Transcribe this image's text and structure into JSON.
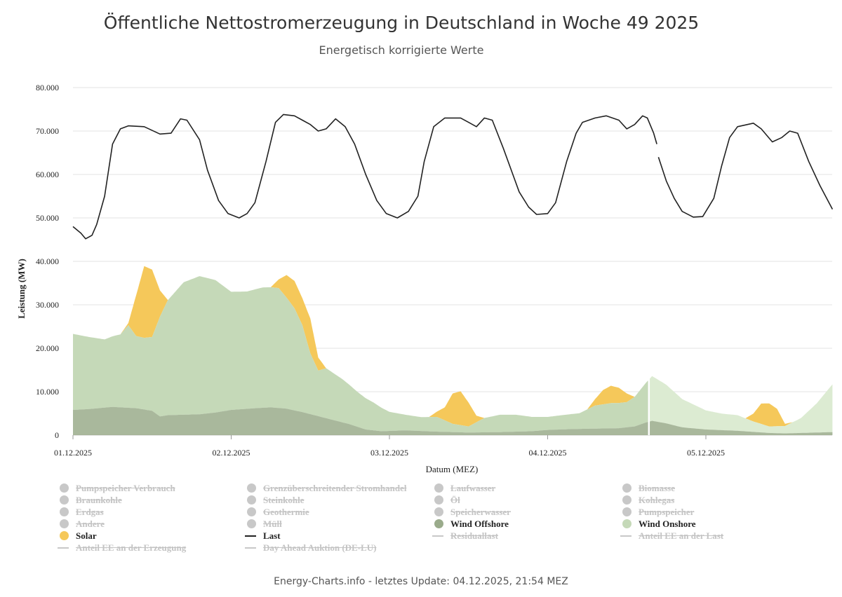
{
  "header": {
    "title": "Öffentliche Nettostromerzeugung in Deutschland in Woche 49 2025",
    "subtitle": "Energetisch korrigierte Werte"
  },
  "footer": {
    "text": "Energy-Charts.info - letztes Update: 04.12.2025, 21:54 MEZ"
  },
  "colors": {
    "solar": "#f5c85a",
    "wind_onshore": "#c5d9b8",
    "wind_onshore_forecast": "#dcebd2",
    "wind_offshore": "#9aab8b",
    "last": "#222222",
    "disabled": "#c8c8c8",
    "grid": "#e3e3e3"
  },
  "legend": [
    {
      "label": "Pumpspeicher Verbrauch",
      "symbol": "dot",
      "active": false
    },
    {
      "label": "Grenzüberschreitender Stromhandel",
      "symbol": "dot",
      "active": false
    },
    {
      "label": "Laufwasser",
      "symbol": "dot",
      "active": false
    },
    {
      "label": "Biomasse",
      "symbol": "dot",
      "active": false
    },
    {
      "label": "Braunkohle",
      "symbol": "dot",
      "active": false
    },
    {
      "label": "Steinkohle",
      "symbol": "dot",
      "active": false
    },
    {
      "label": "Öl",
      "symbol": "dot",
      "active": false
    },
    {
      "label": "Kohlegas",
      "symbol": "dot",
      "active": false
    },
    {
      "label": "Erdgas",
      "symbol": "dot",
      "active": false
    },
    {
      "label": "Geothermie",
      "symbol": "dot",
      "active": false
    },
    {
      "label": "Speicherwasser",
      "symbol": "dot",
      "active": false
    },
    {
      "label": "Pumpspeicher",
      "symbol": "dot",
      "active": false
    },
    {
      "label": "Andere",
      "symbol": "dot",
      "active": false
    },
    {
      "label": "Müll",
      "symbol": "dot",
      "active": false
    },
    {
      "label": "Wind Offshore",
      "symbol": "dot",
      "active": true,
      "color": "#9aab8b"
    },
    {
      "label": "Wind Onshore",
      "symbol": "dot",
      "active": true,
      "color": "#c5d9b8"
    },
    {
      "label": "Solar",
      "symbol": "dot",
      "active": true,
      "color": "#f5c85a"
    },
    {
      "label": "Last",
      "symbol": "line",
      "active": true,
      "color": "#222222"
    },
    {
      "label": "Residuallast",
      "symbol": "line",
      "active": false
    },
    {
      "label": "Anteil EE an der Last",
      "symbol": "line",
      "active": false
    },
    {
      "label": "Anteil EE an der Erzeugung",
      "symbol": "line",
      "active": false
    },
    {
      "label": "Day Ahead Auktion (DE-LU)",
      "symbol": "line",
      "active": false
    }
  ],
  "chart_data": {
    "type": "area",
    "title": "Öffentliche Nettostromerzeugung in Deutschland in Woche 49 2025",
    "subtitle": "Energetisch korrigierte Werte",
    "xlabel": "Datum (MEZ)",
    "ylabel": "Leistung (MW)",
    "ylim": [
      0,
      80000
    ],
    "xlim_days": [
      0,
      4.8
    ],
    "yticks": [
      0,
      10000,
      20000,
      30000,
      40000,
      50000,
      60000,
      70000,
      80000
    ],
    "ytick_labels": [
      "0",
      "10.000",
      "20.000",
      "30.000",
      "40.000",
      "50.000",
      "60.000",
      "70.000",
      "80.000"
    ],
    "xticks": [
      0,
      1,
      2,
      3,
      4
    ],
    "xtick_labels": [
      "01.12.2025",
      "02.12.2025",
      "03.12.2025",
      "04.12.2025",
      "05.12.2025"
    ],
    "forecast_start_day": 3.64,
    "stacking": "Wind Offshore + Wind Onshore + Solar (stacked); Last as line",
    "series": [
      {
        "name": "Wind Offshore",
        "kind": "stacked-area",
        "points": [
          [
            0,
            5800
          ],
          [
            0.1,
            6000
          ],
          [
            0.25,
            6500
          ],
          [
            0.4,
            6200
          ],
          [
            0.5,
            5600
          ],
          [
            0.55,
            4300
          ],
          [
            0.6,
            4600
          ],
          [
            0.8,
            4800
          ],
          [
            0.9,
            5200
          ],
          [
            1.0,
            5800
          ],
          [
            1.15,
            6200
          ],
          [
            1.25,
            6400
          ],
          [
            1.35,
            6100
          ],
          [
            1.45,
            5300
          ],
          [
            1.6,
            3900
          ],
          [
            1.75,
            2500
          ],
          [
            1.85,
            1300
          ],
          [
            1.95,
            900
          ],
          [
            2.1,
            1100
          ],
          [
            2.3,
            800
          ],
          [
            2.5,
            600
          ],
          [
            2.7,
            700
          ],
          [
            2.9,
            900
          ],
          [
            3.0,
            1200
          ],
          [
            3.15,
            1400
          ],
          [
            3.3,
            1500
          ],
          [
            3.45,
            1600
          ],
          [
            3.55,
            2000
          ],
          [
            3.62,
            2900
          ],
          [
            3.66,
            3300
          ],
          [
            3.75,
            2700
          ],
          [
            3.85,
            1800
          ],
          [
            4.0,
            1300
          ],
          [
            4.2,
            1000
          ],
          [
            4.4,
            500
          ],
          [
            4.5,
            400
          ],
          [
            4.6,
            500
          ],
          [
            4.8,
            700
          ]
        ]
      },
      {
        "name": "Wind Onshore",
        "kind": "stacked-area",
        "points": [
          [
            0,
            17500
          ],
          [
            0.1,
            16600
          ],
          [
            0.2,
            15700
          ],
          [
            0.3,
            16800
          ],
          [
            0.35,
            19000
          ],
          [
            0.4,
            16600
          ],
          [
            0.45,
            16500
          ],
          [
            0.5,
            17000
          ],
          [
            0.55,
            23000
          ],
          [
            0.6,
            26500
          ],
          [
            0.7,
            30500
          ],
          [
            0.8,
            31800
          ],
          [
            0.9,
            30500
          ],
          [
            1.0,
            27200
          ],
          [
            1.1,
            27000
          ],
          [
            1.2,
            27700
          ],
          [
            1.3,
            27600
          ],
          [
            1.4,
            23500
          ],
          [
            1.45,
            20000
          ],
          [
            1.5,
            14000
          ],
          [
            1.55,
            10500
          ],
          [
            1.6,
            11500
          ],
          [
            1.7,
            10000
          ],
          [
            1.8,
            8000
          ],
          [
            1.9,
            6400
          ],
          [
            2.0,
            4400
          ],
          [
            2.1,
            3600
          ],
          [
            2.2,
            3200
          ],
          [
            2.3,
            3400
          ],
          [
            2.4,
            1900
          ],
          [
            2.5,
            1400
          ],
          [
            2.6,
            3300
          ],
          [
            2.7,
            4000
          ],
          [
            2.8,
            3900
          ],
          [
            2.9,
            3300
          ],
          [
            3.0,
            3000
          ],
          [
            3.1,
            3300
          ],
          [
            3.2,
            3600
          ],
          [
            3.3,
            5300
          ],
          [
            3.4,
            5800
          ],
          [
            3.5,
            5800
          ],
          [
            3.55,
            6800
          ],
          [
            3.62,
            9100
          ],
          [
            3.66,
            10300
          ],
          [
            3.75,
            8900
          ],
          [
            3.85,
            6500
          ],
          [
            4.0,
            4400
          ],
          [
            4.1,
            3800
          ],
          [
            4.2,
            3600
          ],
          [
            4.3,
            2400
          ],
          [
            4.4,
            1500
          ],
          [
            4.5,
            1700
          ],
          [
            4.6,
            3400
          ],
          [
            4.7,
            6700
          ],
          [
            4.8,
            11000
          ]
        ]
      },
      {
        "name": "Solar",
        "kind": "stacked-area",
        "points": [
          [
            0,
            0
          ],
          [
            0.3,
            0
          ],
          [
            0.35,
            500
          ],
          [
            0.4,
            9500
          ],
          [
            0.45,
            16500
          ],
          [
            0.5,
            15500
          ],
          [
            0.55,
            6000
          ],
          [
            0.6,
            0
          ],
          [
            1.25,
            0
          ],
          [
            1.3,
            2000
          ],
          [
            1.35,
            5200
          ],
          [
            1.4,
            6300
          ],
          [
            1.45,
            6200
          ],
          [
            1.5,
            8000
          ],
          [
            1.55,
            3000
          ],
          [
            1.6,
            0
          ],
          [
            2.25,
            0
          ],
          [
            2.3,
            1200
          ],
          [
            2.35,
            3000
          ],
          [
            2.4,
            7000
          ],
          [
            2.45,
            7800
          ],
          [
            2.5,
            5500
          ],
          [
            2.55,
            1500
          ],
          [
            2.6,
            0
          ],
          [
            3.25,
            0
          ],
          [
            3.3,
            1500
          ],
          [
            3.35,
            3300
          ],
          [
            3.4,
            4000
          ],
          [
            3.45,
            3500
          ],
          [
            3.5,
            2000
          ],
          [
            3.55,
            0
          ],
          [
            4.25,
            0
          ],
          [
            4.3,
            1800
          ],
          [
            4.35,
            4700
          ],
          [
            4.4,
            5300
          ],
          [
            4.45,
            4000
          ],
          [
            4.5,
            500
          ],
          [
            4.55,
            0
          ],
          [
            4.8,
            0
          ]
        ]
      },
      {
        "name": "Last",
        "kind": "line",
        "points": [
          [
            0,
            48000
          ],
          [
            0.05,
            46500
          ],
          [
            0.08,
            45200
          ],
          [
            0.12,
            46000
          ],
          [
            0.15,
            48500
          ],
          [
            0.2,
            55000
          ],
          [
            0.25,
            67000
          ],
          [
            0.3,
            70500
          ],
          [
            0.35,
            71200
          ],
          [
            0.45,
            71000
          ],
          [
            0.55,
            69300
          ],
          [
            0.62,
            69500
          ],
          [
            0.68,
            72800
          ],
          [
            0.72,
            72500
          ],
          [
            0.8,
            68000
          ],
          [
            0.85,
            61000
          ],
          [
            0.92,
            54000
          ],
          [
            0.98,
            51000
          ],
          [
            1.05,
            50000
          ],
          [
            1.1,
            51000
          ],
          [
            1.15,
            53500
          ],
          [
            1.22,
            63000
          ],
          [
            1.28,
            72000
          ],
          [
            1.33,
            73800
          ],
          [
            1.4,
            73500
          ],
          [
            1.45,
            72500
          ],
          [
            1.5,
            71500
          ],
          [
            1.55,
            70000
          ],
          [
            1.6,
            70500
          ],
          [
            1.66,
            72800
          ],
          [
            1.72,
            71000
          ],
          [
            1.78,
            67000
          ],
          [
            1.85,
            60000
          ],
          [
            1.92,
            54000
          ],
          [
            1.98,
            51000
          ],
          [
            2.05,
            50000
          ],
          [
            2.12,
            51500
          ],
          [
            2.18,
            55000
          ],
          [
            2.22,
            63000
          ],
          [
            2.28,
            71000
          ],
          [
            2.35,
            73000
          ],
          [
            2.45,
            73000
          ],
          [
            2.5,
            72000
          ],
          [
            2.55,
            71000
          ],
          [
            2.6,
            73000
          ],
          [
            2.65,
            72500
          ],
          [
            2.72,
            66000
          ],
          [
            2.78,
            60000
          ],
          [
            2.82,
            56000
          ],
          [
            2.88,
            52500
          ],
          [
            2.93,
            50800
          ],
          [
            3.0,
            51000
          ],
          [
            3.05,
            53500
          ],
          [
            3.12,
            63000
          ],
          [
            3.18,
            69500
          ],
          [
            3.22,
            72000
          ],
          [
            3.3,
            73000
          ],
          [
            3.37,
            73500
          ],
          [
            3.45,
            72500
          ],
          [
            3.5,
            70500
          ],
          [
            3.55,
            71500
          ],
          [
            3.6,
            73500
          ],
          [
            3.63,
            73000
          ],
          [
            3.67,
            69500
          ],
          [
            3.69,
            67000
          ]
        ]
      },
      {
        "name": "Last (Prognose)",
        "kind": "line",
        "points": [
          [
            3.7,
            64000
          ],
          [
            3.75,
            58500
          ],
          [
            3.8,
            54500
          ],
          [
            3.85,
            51500
          ],
          [
            3.92,
            50200
          ],
          [
            3.98,
            50300
          ],
          [
            4.05,
            54500
          ],
          [
            4.1,
            62000
          ],
          [
            4.15,
            68500
          ],
          [
            4.2,
            71000
          ],
          [
            4.3,
            71800
          ],
          [
            4.35,
            70500
          ],
          [
            4.42,
            67500
          ],
          [
            4.48,
            68500
          ],
          [
            4.53,
            70000
          ],
          [
            4.58,
            69500
          ],
          [
            4.65,
            63000
          ],
          [
            4.72,
            57500
          ],
          [
            4.8,
            52000
          ]
        ]
      }
    ]
  }
}
